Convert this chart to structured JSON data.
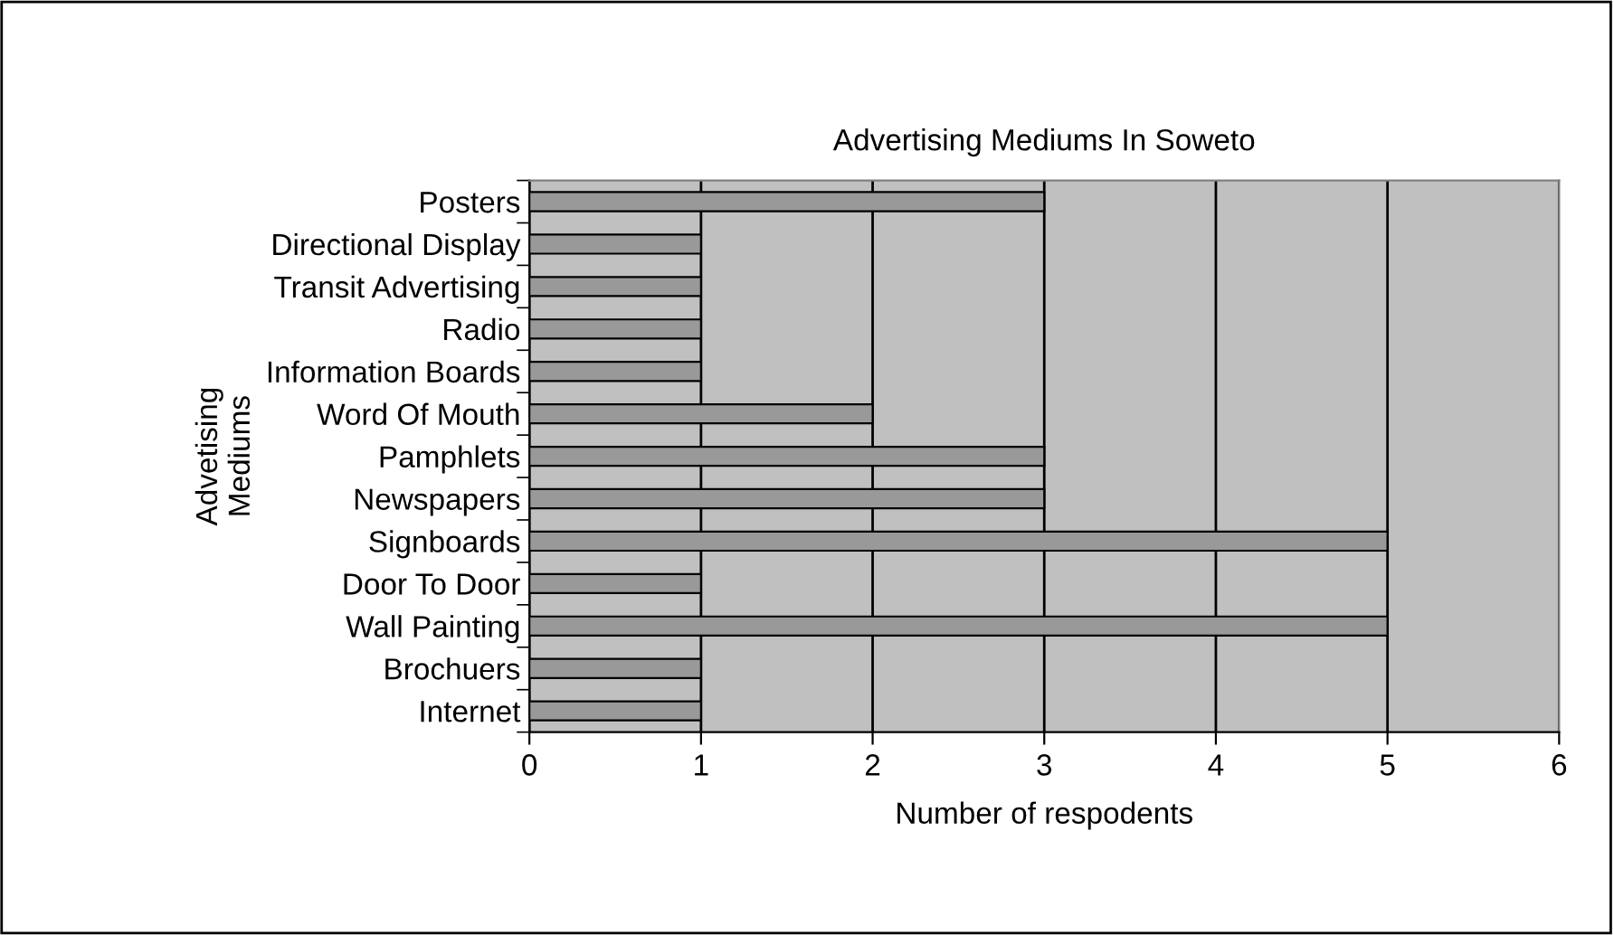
{
  "chart_data": {
    "type": "bar",
    "orientation": "horizontal",
    "title": "Advertising Mediums In Soweto",
    "xlabel": "Number of respodents",
    "ylabel": "Advetising\nMediums",
    "categories": [
      "Posters",
      "Directional Display",
      "Transit Advertising",
      "Radio",
      "Information Boards",
      "Word Of Mouth",
      "Pamphlets",
      "Newspapers",
      "Signboards",
      "Door To Door",
      "Wall Painting",
      "Brochuers",
      "Internet"
    ],
    "values": [
      3,
      1,
      1,
      1,
      1,
      2,
      3,
      3,
      5,
      1,
      5,
      1,
      1
    ],
    "color": "#999999",
    "xlim": [
      0,
      6
    ],
    "xticks": [
      0,
      1,
      2,
      3,
      4,
      5,
      6
    ],
    "grid": "x",
    "legend": false
  }
}
